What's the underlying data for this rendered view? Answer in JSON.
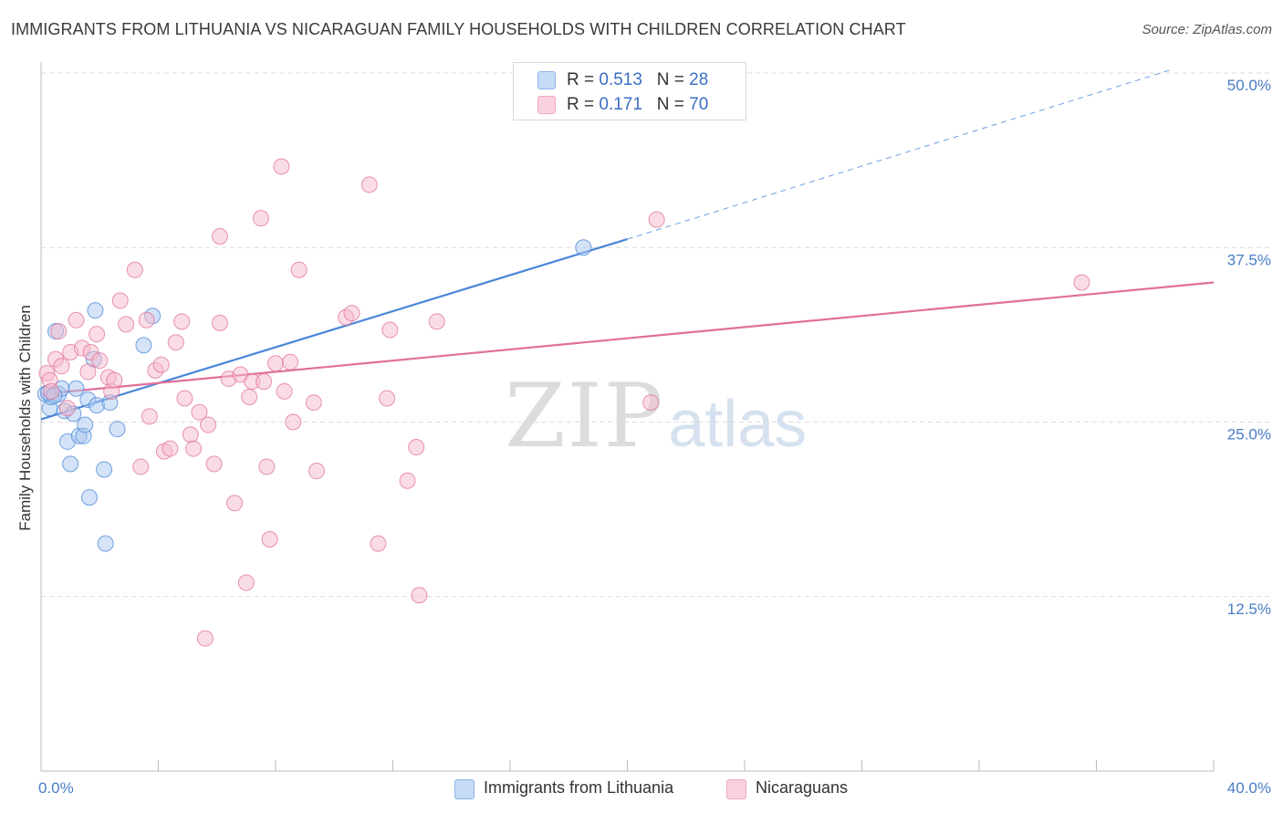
{
  "title": "IMMIGRANTS FROM LITHUANIA VS NICARAGUAN FAMILY HOUSEHOLDS WITH CHILDREN CORRELATION CHART",
  "source": "Source: ZipAtlas.com",
  "watermark": {
    "zip": "ZIP",
    "atlas": "atlas"
  },
  "legend_top": {
    "rows": [
      {
        "r_label": "R = ",
        "r_value": "0.513",
        "n_label": "N = ",
        "n_value": "28",
        "color": "#a9c8f0"
      },
      {
        "r_label": "R = ",
        "r_value": " 0.171",
        "n_label": "N = ",
        "n_value": "70",
        "color": "#f6b9cb"
      }
    ]
  },
  "legend_bottom": [
    {
      "label": "Immigrants from Lithuania",
      "color": "#a9c8f0"
    },
    {
      "label": "Nicaraguans",
      "color": "#f6b9cb"
    }
  ],
  "chart_data": {
    "type": "scatter",
    "title": "IMMIGRANTS FROM LITHUANIA VS NICARAGUAN FAMILY HOUSEHOLDS WITH CHILDREN CORRELATION CHART",
    "xlabel": "",
    "ylabel": "Family Households with Children",
    "xlim": [
      0,
      40
    ],
    "ylim": [
      0,
      50
    ],
    "x_tick_labels": [
      "0.0%",
      "40.0%"
    ],
    "y_ticks": [
      12.5,
      25.0,
      37.5,
      50.0
    ],
    "y_tick_labels": [
      "12.5%",
      "25.0%",
      "37.5%",
      "50.0%"
    ],
    "grid": "horizontal dashed",
    "legend_position": "top-center and bottom",
    "series": [
      {
        "name": "Immigrants from Lithuania",
        "color": "#4a86d8",
        "fill": "#a9c8f0",
        "trend": {
          "x": [
            0,
            20
          ],
          "y": [
            25.2,
            38.1
          ],
          "dashed_to": [
            38.5,
            50.2
          ]
        },
        "points": [
          [
            0.15,
            27.0
          ],
          [
            0.3,
            26.0
          ],
          [
            0.35,
            26.8
          ],
          [
            0.5,
            31.5
          ],
          [
            0.6,
            27.0
          ],
          [
            0.7,
            27.4
          ],
          [
            0.8,
            25.8
          ],
          [
            0.9,
            23.6
          ],
          [
            1.0,
            22.0
          ],
          [
            1.1,
            25.6
          ],
          [
            1.2,
            27.4
          ],
          [
            1.3,
            24.0
          ],
          [
            1.45,
            24.0
          ],
          [
            1.5,
            24.8
          ],
          [
            1.6,
            26.6
          ],
          [
            1.65,
            19.6
          ],
          [
            1.8,
            29.5
          ],
          [
            1.85,
            33.0
          ],
          [
            1.9,
            26.2
          ],
          [
            2.15,
            21.6
          ],
          [
            2.2,
            16.3
          ],
          [
            2.35,
            26.4
          ],
          [
            2.6,
            24.5
          ],
          [
            3.5,
            30.5
          ],
          [
            3.8,
            32.6
          ],
          [
            18.5,
            37.5
          ],
          [
            0.25,
            27.1
          ],
          [
            0.45,
            26.9
          ]
        ]
      },
      {
        "name": "Nicaraguans",
        "color": "#e0709a",
        "fill": "#f6b9cb",
        "trend": {
          "x": [
            0,
            40
          ],
          "y": [
            27.0,
            35.0
          ]
        },
        "points": [
          [
            0.2,
            28.5
          ],
          [
            0.3,
            28.0
          ],
          [
            0.35,
            27.2
          ],
          [
            0.5,
            29.5
          ],
          [
            0.6,
            31.5
          ],
          [
            0.7,
            29.0
          ],
          [
            0.9,
            26.0
          ],
          [
            1.0,
            30.0
          ],
          [
            1.2,
            32.3
          ],
          [
            1.4,
            30.3
          ],
          [
            1.6,
            28.6
          ],
          [
            1.7,
            30.0
          ],
          [
            1.9,
            31.3
          ],
          [
            2.0,
            29.4
          ],
          [
            2.3,
            28.2
          ],
          [
            2.4,
            27.2
          ],
          [
            2.5,
            28.0
          ],
          [
            2.7,
            33.7
          ],
          [
            2.9,
            32.0
          ],
          [
            3.2,
            35.9
          ],
          [
            3.4,
            21.8
          ],
          [
            3.6,
            32.3
          ],
          [
            3.7,
            25.4
          ],
          [
            3.9,
            28.7
          ],
          [
            4.1,
            29.1
          ],
          [
            4.2,
            22.9
          ],
          [
            4.4,
            23.1
          ],
          [
            4.6,
            30.7
          ],
          [
            4.8,
            32.2
          ],
          [
            4.9,
            26.7
          ],
          [
            5.1,
            24.1
          ],
          [
            5.2,
            23.1
          ],
          [
            5.4,
            25.7
          ],
          [
            5.6,
            9.5
          ],
          [
            5.7,
            24.8
          ],
          [
            5.9,
            22.0
          ],
          [
            6.1,
            32.1
          ],
          [
            6.1,
            38.3
          ],
          [
            6.4,
            28.1
          ],
          [
            6.6,
            19.2
          ],
          [
            6.8,
            28.4
          ],
          [
            7.0,
            13.5
          ],
          [
            7.1,
            26.8
          ],
          [
            7.2,
            27.9
          ],
          [
            7.5,
            39.6
          ],
          [
            7.6,
            27.9
          ],
          [
            7.7,
            21.8
          ],
          [
            7.8,
            16.6
          ],
          [
            8.0,
            29.2
          ],
          [
            8.2,
            43.3
          ],
          [
            8.3,
            27.2
          ],
          [
            8.5,
            29.3
          ],
          [
            8.6,
            25.0
          ],
          [
            8.8,
            35.9
          ],
          [
            9.3,
            26.4
          ],
          [
            9.4,
            21.5
          ],
          [
            10.4,
            32.5
          ],
          [
            10.6,
            32.8
          ],
          [
            11.2,
            42.0
          ],
          [
            11.5,
            16.3
          ],
          [
            11.8,
            26.7
          ],
          [
            11.9,
            31.6
          ],
          [
            12.5,
            20.8
          ],
          [
            12.8,
            23.2
          ],
          [
            12.9,
            12.6
          ],
          [
            13.5,
            32.2
          ],
          [
            20.8,
            26.4
          ],
          [
            21.0,
            39.5
          ],
          [
            23.6,
            48.0
          ],
          [
            35.5,
            35.0
          ]
        ]
      }
    ]
  }
}
